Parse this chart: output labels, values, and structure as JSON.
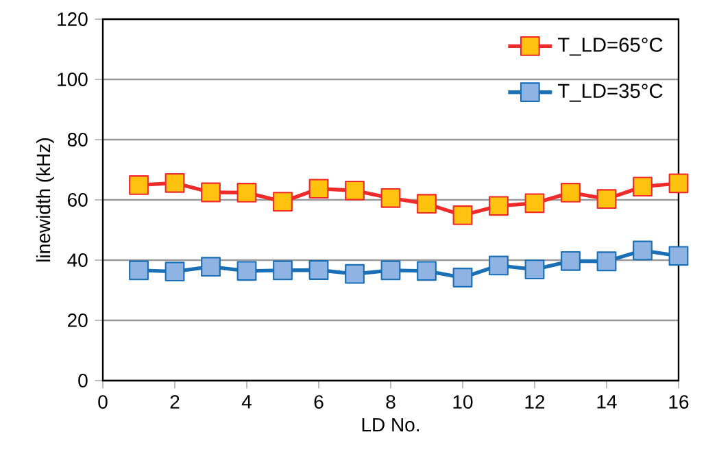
{
  "chart_data": {
    "type": "line",
    "xlabel": "LD No.",
    "ylabel": "linewidth (kHz)",
    "x": [
      1,
      2,
      3,
      4,
      5,
      6,
      7,
      8,
      9,
      10,
      11,
      12,
      13,
      14,
      15,
      16
    ],
    "series": [
      {
        "name": "T_LD=65°C",
        "color": "#ee2a2a",
        "values": [
          64.9,
          65.6,
          62.5,
          62.4,
          59.4,
          63.7,
          63.1,
          60.6,
          58.7,
          54.9,
          58.0,
          58.9,
          62.4,
          60.3,
          64.4,
          65.5
        ]
      },
      {
        "name": "T_LD=35°C",
        "color": "#1a6fb5",
        "values": [
          36.6,
          36.2,
          37.8,
          36.4,
          36.6,
          36.7,
          35.4,
          36.6,
          36.4,
          34.2,
          38.2,
          36.9,
          39.7,
          39.6,
          43.2,
          41.4
        ]
      }
    ],
    "xlim": [
      0,
      16
    ],
    "xticks": [
      0,
      2,
      4,
      6,
      8,
      10,
      12,
      14,
      16
    ],
    "ylim": [
      0,
      120
    ],
    "yticks": [
      0,
      20,
      40,
      60,
      80,
      100,
      120
    ],
    "grid": "y",
    "legend": "top right",
    "marker": "square",
    "line_style": "solid"
  }
}
